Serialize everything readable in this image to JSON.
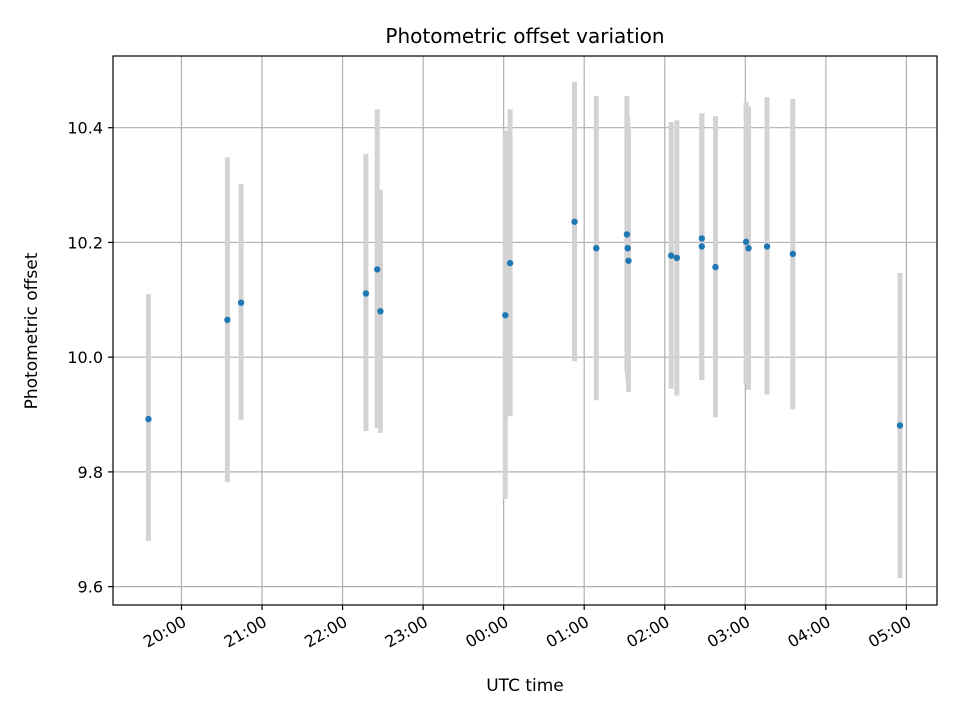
{
  "chart_data": {
    "type": "scatter",
    "title": "Photometric offset variation",
    "xlabel": "UTC time",
    "ylabel": "Photometric offset",
    "grid": true,
    "x_unit": "hours since 00:00 UTC",
    "xlim": [
      -4.85,
      5.38
    ],
    "ylim": [
      9.568,
      10.525
    ],
    "yticks": [
      9.6,
      9.8,
      10.0,
      10.2,
      10.4
    ],
    "ytick_labels": [
      "9.6",
      "9.8",
      "10.0",
      "10.2",
      "10.4"
    ],
    "xticks": [
      -4,
      -3,
      -2,
      -1,
      0,
      1,
      2,
      3,
      4,
      5
    ],
    "xtick_labels": [
      "20:00",
      "21:00",
      "22:00",
      "23:00",
      "00:00",
      "01:00",
      "02:00",
      "03:00",
      "04:00",
      "05:00"
    ],
    "marker_color": "#1f77b4",
    "errorbar_color": "#d3d3d3",
    "points": [
      {
        "x": -4.41,
        "y": 9.892,
        "ylo": 9.68,
        "yhi": 10.11
      },
      {
        "x": -3.43,
        "y": 10.065,
        "ylo": 9.782,
        "yhi": 10.348
      },
      {
        "x": -3.26,
        "y": 10.095,
        "ylo": 9.891,
        "yhi": 10.302
      },
      {
        "x": -1.71,
        "y": 10.111,
        "ylo": 9.871,
        "yhi": 10.354
      },
      {
        "x": -1.57,
        "y": 10.153,
        "ylo": 9.876,
        "yhi": 10.432
      },
      {
        "x": -1.53,
        "y": 10.08,
        "ylo": 9.868,
        "yhi": 10.292
      },
      {
        "x": 0.02,
        "y": 10.073,
        "ylo": 9.753,
        "yhi": 10.395
      },
      {
        "x": 0.08,
        "y": 10.164,
        "ylo": 9.897,
        "yhi": 10.432
      },
      {
        "x": 0.88,
        "y": 10.236,
        "ylo": 9.993,
        "yhi": 10.48
      },
      {
        "x": 1.15,
        "y": 10.19,
        "ylo": 9.925,
        "yhi": 10.455
      },
      {
        "x": 1.53,
        "y": 10.214,
        "ylo": 9.974,
        "yhi": 10.455
      },
      {
        "x": 1.54,
        "y": 10.19,
        "ylo": 9.96,
        "yhi": 10.42
      },
      {
        "x": 1.55,
        "y": 10.168,
        "ylo": 9.939,
        "yhi": 10.397
      },
      {
        "x": 2.08,
        "y": 10.177,
        "ylo": 9.945,
        "yhi": 10.41
      },
      {
        "x": 2.15,
        "y": 10.173,
        "ylo": 9.933,
        "yhi": 10.413
      },
      {
        "x": 2.46,
        "y": 10.207,
        "ylo": 9.96,
        "yhi": 10.425
      },
      {
        "x": 2.46,
        "y": 10.193,
        "ylo": 9.96,
        "yhi": 10.425
      },
      {
        "x": 2.63,
        "y": 10.157,
        "ylo": 9.895,
        "yhi": 10.42
      },
      {
        "x": 3.01,
        "y": 10.201,
        "ylo": 9.953,
        "yhi": 10.445
      },
      {
        "x": 3.04,
        "y": 10.19,
        "ylo": 9.943,
        "yhi": 10.437
      },
      {
        "x": 3.27,
        "y": 10.193,
        "ylo": 9.935,
        "yhi": 10.453
      },
      {
        "x": 3.59,
        "y": 10.18,
        "ylo": 9.909,
        "yhi": 10.45
      },
      {
        "x": 4.92,
        "y": 9.881,
        "ylo": 9.615,
        "yhi": 10.147
      }
    ]
  }
}
